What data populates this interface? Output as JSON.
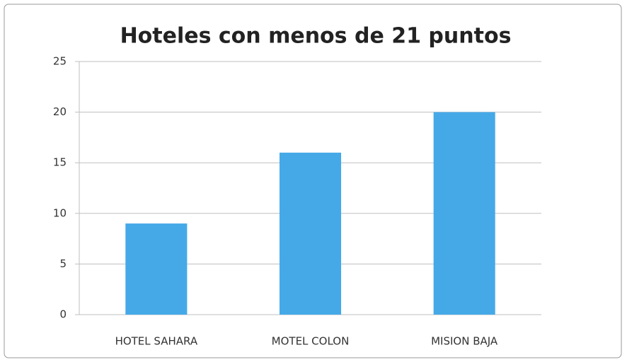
{
  "chart_data": {
    "type": "bar",
    "title": "Hoteles con menos de 21 puntos",
    "categories": [
      "HOTEL SAHARA",
      "MOTEL COLON",
      "MISION BAJA"
    ],
    "values": [
      9,
      16,
      20
    ],
    "color": "#45a9e8",
    "ylim": [
      0,
      25
    ],
    "yticks": [
      0,
      5,
      10,
      15,
      20,
      25
    ],
    "grid": true
  }
}
